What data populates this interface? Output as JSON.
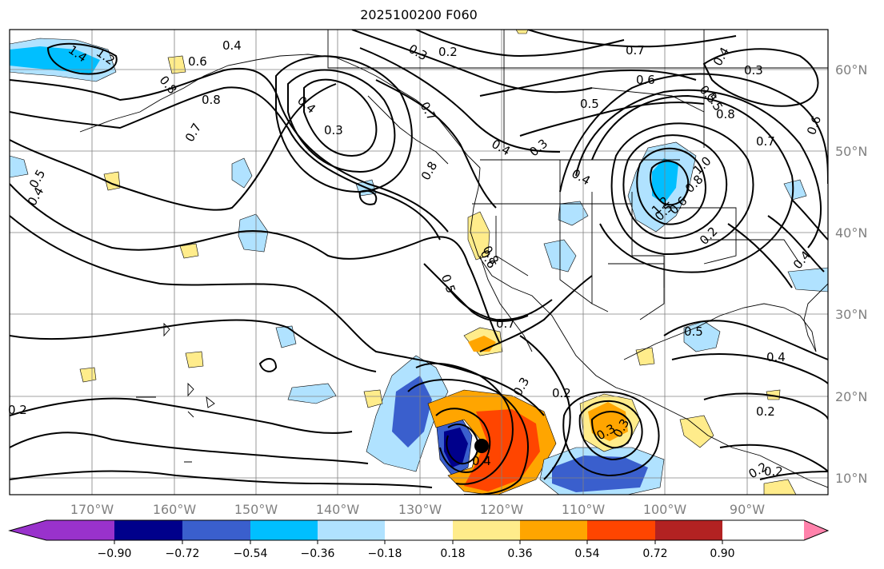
{
  "title": "2025100200 F060",
  "lat_labels": [
    "60°N",
    "50°N",
    "40°N",
    "30°N",
    "20°N",
    "10°N"
  ],
  "lon_labels": [
    "170°W",
    "160°W",
    "150°W",
    "140°W",
    "130°W",
    "120°W",
    "110°W",
    "100°W",
    "90°W"
  ],
  "colorbar": {
    "ticks": [
      "−0.90",
      "−0.72",
      "−0.54",
      "−0.36",
      "−0.18",
      "0.18",
      "0.36",
      "0.54",
      "0.72",
      "0.90"
    ],
    "colors": [
      "#9932cc",
      "#00008b",
      "#3a5fcd",
      "#00bfff",
      "#b0e2ff",
      "#ffffff",
      "#ffec8b",
      "#ffa500",
      "#ff4500",
      "#b22222",
      "#ff82ab"
    ]
  },
  "contour_labels": [
    "1.4",
    "1.2",
    "0.6",
    "0.4",
    "0.2",
    "0.3",
    "0.7",
    "0.8",
    "0.7",
    "0.8",
    "0.4",
    "0.3",
    "0.6",
    "0.5",
    "0.8",
    "0.7",
    "0.5",
    "0.4",
    "0.3",
    "0.8",
    "0.7",
    "0.4",
    "0.5",
    "0.3",
    "0.6",
    "0.4",
    "0.5",
    "0.6",
    "0.7",
    "0.2",
    "0.3",
    "0.5",
    "0.4",
    "0.3",
    "0.2",
    "0.4",
    "0.2",
    "0.4",
    "0.3",
    "0.5",
    "0.6",
    "0.8",
    "1.0",
    "1.2",
    "0.8",
    "0.5",
    "0.2",
    "0.4",
    "0.2",
    "0.2"
  ]
}
